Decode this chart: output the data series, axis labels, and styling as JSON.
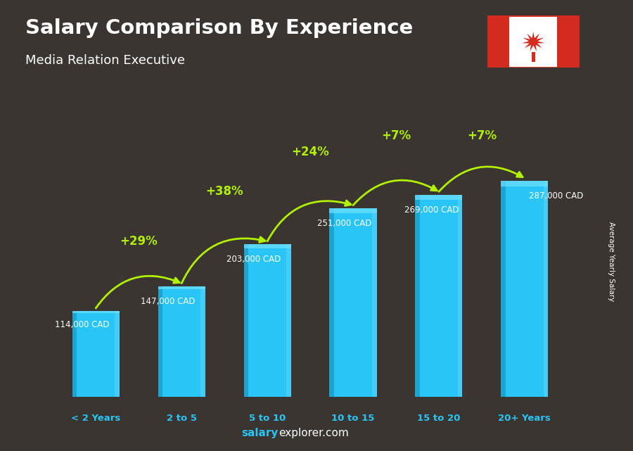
{
  "title": "Salary Comparison By Experience",
  "subtitle": "Media Relation Executive",
  "categories": [
    "< 2 Years",
    "2 to 5",
    "5 to 10",
    "10 to 15",
    "15 to 20",
    "20+ Years"
  ],
  "values": [
    114000,
    147000,
    203000,
    251000,
    269000,
    287000
  ],
  "labels": [
    "114,000 CAD",
    "147,000 CAD",
    "203,000 CAD",
    "251,000 CAD",
    "269,000 CAD",
    "287,000 CAD"
  ],
  "pct_changes": [
    "+29%",
    "+38%",
    "+24%",
    "+7%",
    "+7%"
  ],
  "bar_color_main": "#29c5f6",
  "bar_color_dark": "#1a9ec8",
  "bar_color_light": "#5dd5f8",
  "pct_color": "#b0f000",
  "label_color_white": "#ffffff",
  "title_color": "#ffffff",
  "bg_color": "#3a3530",
  "ylabel": "Average Yearly Salary",
  "footer_salary": "salary",
  "footer_explorer": "explorer",
  "footer_com": ".com",
  "footer_color_blue": "#29c5f6",
  "footer_color_white": "#ffffff",
  "ylim": [
    0,
    360000
  ],
  "bar_width": 0.55
}
